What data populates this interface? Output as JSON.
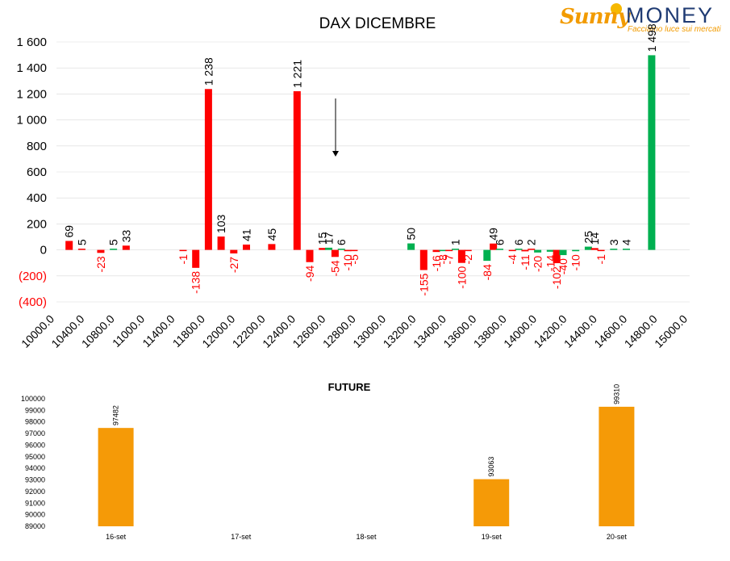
{
  "logo": {
    "brand_a": "Sunny",
    "brand_b": "MONEY",
    "tagline": "Facciamo luce sui mercati"
  },
  "colors": {
    "negative": "#ff0000",
    "positive": "#00b050",
    "future": "#f59a07",
    "text": "#000000",
    "grid": "#d9d9d9"
  },
  "chart_data": [
    {
      "type": "bar",
      "title": "DAX DICEMBRE",
      "x_ticks": [
        "10000.0",
        "10400.0",
        "10800.0",
        "11000.0",
        "11400.0",
        "11800.0",
        "12000.0",
        "12200.0",
        "12400.0",
        "12600.0",
        "12800.0",
        "13000.0",
        "13200.0",
        "13400.0",
        "13600.0",
        "13800.0",
        "14000.0",
        "14200.0",
        "14400.0",
        "14600.0",
        "14800.0",
        "15000.0"
      ],
      "y_ticks": [
        "1 600",
        "1 400",
        "1 200",
        "1 000",
        "800",
        "600",
        "400",
        "200",
        "0",
        "(200)",
        "(400)"
      ],
      "ylim": [
        -400,
        1600
      ],
      "grid": true,
      "annotation": "downward arrow",
      "bars": [
        {
          "x": 10100,
          "value": 69,
          "label": "69",
          "color": "red"
        },
        {
          "x": 10200,
          "value": 5,
          "label": "5",
          "color": "red"
        },
        {
          "x": 10350,
          "value": -23,
          "label": "-23",
          "color": "red"
        },
        {
          "x": 10450,
          "value": 5,
          "label": "5",
          "color": "green"
        },
        {
          "x": 10550,
          "value": 33,
          "label": "33",
          "color": "red"
        },
        {
          "x": 11000,
          "value": -1,
          "label": "-1",
          "color": "red"
        },
        {
          "x": 11100,
          "value": -138,
          "label": "-138",
          "color": "red"
        },
        {
          "x": 11200,
          "value": 1238,
          "label": "1 238",
          "color": "red"
        },
        {
          "x": 11300,
          "value": 103,
          "label": "103",
          "color": "red"
        },
        {
          "x": 11400,
          "value": -27,
          "label": "-27",
          "color": "red"
        },
        {
          "x": 11500,
          "value": 41,
          "label": "41",
          "color": "red"
        },
        {
          "x": 11700,
          "value": 45,
          "label": "45",
          "color": "red"
        },
        {
          "x": 11900,
          "value": 1221,
          "label": "1 221",
          "color": "red"
        },
        {
          "x": 12000,
          "value": -94,
          "label": "-94",
          "color": "red"
        },
        {
          "x": 12100,
          "value": 15,
          "label": "15",
          "color": "red"
        },
        {
          "x": 12150,
          "value": 17,
          "label": "17",
          "color": "green"
        },
        {
          "x": 12200,
          "value": -54,
          "label": "-54",
          "color": "red"
        },
        {
          "x": 12250,
          "value": 6,
          "label": "6",
          "color": "green"
        },
        {
          "x": 12300,
          "value": -10,
          "label": "-10",
          "color": "red"
        },
        {
          "x": 12350,
          "value": -5,
          "label": "-5",
          "color": "red"
        },
        {
          "x": 12800,
          "value": 50,
          "label": "50",
          "color": "green"
        },
        {
          "x": 12900,
          "value": -155,
          "label": "-155",
          "color": "red"
        },
        {
          "x": 13000,
          "value": -16,
          "label": "-16",
          "color": "red"
        },
        {
          "x": 13050,
          "value": -8,
          "label": "-8",
          "color": "green"
        },
        {
          "x": 13100,
          "value": -7,
          "label": "-7",
          "color": "red"
        },
        {
          "x": 13150,
          "value": 1,
          "label": "1",
          "color": "green"
        },
        {
          "x": 13200,
          "value": -100,
          "label": "-100",
          "color": "red"
        },
        {
          "x": 13250,
          "value": -2,
          "label": "-2",
          "color": "red"
        },
        {
          "x": 13400,
          "value": -84,
          "label": "-84",
          "color": "green"
        },
        {
          "x": 13450,
          "value": 49,
          "label": "49",
          "color": "red"
        },
        {
          "x": 13500,
          "value": 6,
          "label": "6",
          "color": "green"
        },
        {
          "x": 13600,
          "value": -4,
          "label": "-4",
          "color": "red"
        },
        {
          "x": 13650,
          "value": 6,
          "label": "6",
          "color": "green"
        },
        {
          "x": 13700,
          "value": -11,
          "label": "-11",
          "color": "red"
        },
        {
          "x": 13750,
          "value": 2,
          "label": "2",
          "color": "red"
        },
        {
          "x": 13800,
          "value": -20,
          "label": "-20",
          "color": "green"
        },
        {
          "x": 13900,
          "value": -14,
          "label": "-14",
          "color": "green"
        },
        {
          "x": 13950,
          "value": -102,
          "label": "-102",
          "color": "red"
        },
        {
          "x": 14000,
          "value": -40,
          "label": "-40",
          "color": "green"
        },
        {
          "x": 14100,
          "value": -10,
          "label": "-10",
          "color": "green"
        },
        {
          "x": 14200,
          "value": 25,
          "label": "25",
          "color": "green"
        },
        {
          "x": 14250,
          "value": 14,
          "label": "14",
          "color": "red"
        },
        {
          "x": 14300,
          "value": -1,
          "label": "-1",
          "color": "red"
        },
        {
          "x": 14400,
          "value": 3,
          "label": "3",
          "color": "green"
        },
        {
          "x": 14500,
          "value": 4,
          "label": "4",
          "color": "green"
        },
        {
          "x": 14700,
          "value": 1498,
          "label": "1 498",
          "color": "green"
        }
      ]
    },
    {
      "type": "bar",
      "title": "FUTURE",
      "categories": [
        "16-set",
        "17-set",
        "18-set",
        "19-set",
        "20-set"
      ],
      "values": [
        97482,
        null,
        null,
        93063,
        99310
      ],
      "value_labels": [
        "97482",
        "",
        "",
        "93063",
        "99310"
      ],
      "y_ticks": [
        "100000",
        "99000",
        "98000",
        "97000",
        "96000",
        "95000",
        "94000",
        "93000",
        "92000",
        "91000",
        "90000",
        "89000"
      ],
      "ylim": [
        89000,
        100000
      ],
      "grid": false
    }
  ]
}
